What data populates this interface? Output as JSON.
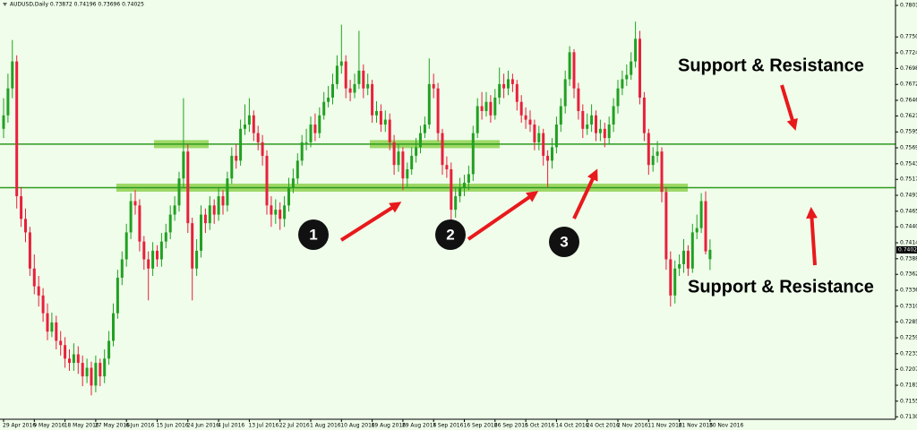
{
  "chart_data": {
    "type": "candlestick",
    "title": "AUDUSD,Daily  0.73872 0.74196 0.73696 0.74025",
    "up_color": "#22a022",
    "down_color": "#e8203c",
    "ylim": [
      0.7126,
      0.78015
    ],
    "yticks": [
      0.78015,
      {
        "value": 0.775,
        "label": "0.77500"
      },
      {
        "value": 0.7724,
        "label": "0.77240"
      },
      0.76985,
      0.76725,
      0.76465,
      {
        "value": 0.7621,
        "label": "0.76210"
      },
      {
        "value": 0.7595,
        "label": "0.75950"
      },
      {
        "value": 0.7569,
        "label": "0.75690"
      },
      {
        "value": 0.7543,
        "label": "0.75430"
      },
      0.75175,
      0.74915,
      0.74655,
      {
        "value": 0.744,
        "label": "0.74400"
      },
      {
        "value": 0.7414,
        "label": "0.74140"
      },
      {
        "value": 0.7388,
        "label": "0.73880"
      },
      0.73625,
      0.73365,
      0.73105,
      {
        "value": 0.7285,
        "label": "0.72850"
      },
      {
        "value": 0.7259,
        "label": "0.72590"
      },
      {
        "value": 0.7233,
        "label": "0.72330"
      },
      0.72075,
      0.71815,
      0.71555,
      {
        "value": 0.713,
        "label": "0.71300"
      }
    ],
    "levels": [
      0.7575,
      0.7504
    ],
    "level_color": "#2e9a1e",
    "annotations": [
      "Support & Resistance",
      "Support & Resistance"
    ],
    "markers": [
      "1",
      "2",
      "3"
    ],
    "categories": [
      "29 Apr 2016",
      null,
      null,
      null,
      null,
      null,
      null,
      "9 May 2016",
      null,
      null,
      null,
      null,
      null,
      null,
      "18 May 2016",
      null,
      null,
      null,
      null,
      null,
      null,
      "27 May 2016",
      null,
      null,
      null,
      null,
      null,
      null,
      "6 Jun 2016",
      null,
      null,
      null,
      null,
      null,
      null,
      "15 Jun 2016",
      null,
      null,
      null,
      null,
      null,
      null,
      "24 Jun 2016",
      null,
      null,
      null,
      null,
      null,
      null,
      "4 Jul 2016",
      null,
      null,
      null,
      null,
      null,
      null,
      "13 Jul 2016",
      null,
      null,
      null,
      null,
      null,
      null,
      "22 Jul 2016",
      null,
      null,
      null,
      null,
      null,
      null,
      "1 Aug 2016",
      null,
      null,
      null,
      null,
      null,
      null,
      "10 Aug 2016",
      null,
      null,
      null,
      null,
      null,
      null,
      "19 Aug 2016",
      null,
      null,
      null,
      null,
      null,
      null,
      "29 Aug 2016",
      null,
      null,
      null,
      null,
      null,
      null,
      "7 Sep 2016",
      null,
      null,
      null,
      null,
      null,
      null,
      "16 Sep 2016",
      null,
      null,
      null,
      null,
      null,
      null,
      "26 Sep 2016",
      null,
      null,
      null,
      null,
      null,
      null,
      "5 Oct 2016",
      null,
      null,
      null,
      null,
      null,
      null,
      "14 Oct 2016",
      null,
      null,
      null,
      null,
      null,
      null,
      "24 Oct 2016",
      null,
      null,
      null,
      null,
      null,
      null,
      "2 Nov 2016",
      null,
      null,
      null,
      null,
      null,
      null,
      "11 Nov 2016",
      null,
      null,
      null,
      null,
      null,
      null,
      "21 Nov 2016",
      null,
      null,
      null,
      null,
      null,
      null,
      "30 Nov 2016"
    ],
    "ohlc": [
      [
        0.76,
        0.765,
        0.7585,
        0.7622
      ],
      [
        0.7622,
        0.769,
        0.761,
        0.7666
      ],
      [
        0.7666,
        0.7745,
        0.765,
        0.771
      ],
      [
        0.771,
        0.772,
        0.747,
        0.749
      ],
      [
        0.749,
        0.7505,
        0.744,
        0.7453
      ],
      [
        0.7453,
        0.747,
        0.7415,
        0.7431
      ],
      [
        0.7431,
        0.744,
        0.736,
        0.7372
      ],
      [
        0.7372,
        0.7395,
        0.733,
        0.7343
      ],
      [
        0.7343,
        0.736,
        0.731,
        0.7328
      ],
      [
        0.7328,
        0.734,
        0.7285,
        0.7299
      ],
      [
        0.7299,
        0.7315,
        0.7255,
        0.7269
      ],
      [
        0.7269,
        0.73,
        0.726,
        0.7284
      ],
      [
        0.7284,
        0.7295,
        0.724,
        0.7254
      ],
      [
        0.7254,
        0.727,
        0.723,
        0.7247
      ],
      [
        0.7247,
        0.726,
        0.721,
        0.7225
      ],
      [
        0.7225,
        0.724,
        0.7205,
        0.7218
      ],
      [
        0.7218,
        0.725,
        0.7205,
        0.7232
      ],
      [
        0.7232,
        0.7245,
        0.72,
        0.7218
      ],
      [
        0.7218,
        0.723,
        0.718,
        0.7196
      ],
      [
        0.7196,
        0.7225,
        0.7185,
        0.721
      ],
      [
        0.721,
        0.722,
        0.7165,
        0.7181
      ],
      [
        0.7181,
        0.723,
        0.717,
        0.7218
      ],
      [
        0.7218,
        0.7225,
        0.718,
        0.7196
      ],
      [
        0.7196,
        0.724,
        0.7185,
        0.7225
      ],
      [
        0.7225,
        0.727,
        0.7215,
        0.7254
      ],
      [
        0.7254,
        0.7315,
        0.7245,
        0.7299
      ],
      [
        0.7299,
        0.737,
        0.729,
        0.7357
      ],
      [
        0.7357,
        0.74,
        0.7345,
        0.7387
      ],
      [
        0.7387,
        0.7445,
        0.7375,
        0.7431
      ],
      [
        0.7431,
        0.7495,
        0.742,
        0.7482
      ],
      [
        0.7482,
        0.75,
        0.746,
        0.7475
      ],
      [
        0.7475,
        0.7485,
        0.74,
        0.7416
      ],
      [
        0.7416,
        0.7425,
        0.737,
        0.7387
      ],
      [
        0.7387,
        0.74,
        0.732,
        0.7372
      ],
      [
        0.7372,
        0.7415,
        0.736,
        0.7401
      ],
      [
        0.7401,
        0.741,
        0.7375,
        0.7387
      ],
      [
        0.7387,
        0.743,
        0.7375,
        0.7416
      ],
      [
        0.7416,
        0.7445,
        0.7405,
        0.7431
      ],
      [
        0.7431,
        0.7475,
        0.742,
        0.746
      ],
      [
        0.746,
        0.749,
        0.745,
        0.7475
      ],
      [
        0.7475,
        0.753,
        0.7465,
        0.7519
      ],
      [
        0.7519,
        0.765,
        0.7505,
        0.7563
      ],
      [
        0.7563,
        0.7575,
        0.743,
        0.7446
      ],
      [
        0.7446,
        0.7455,
        0.732,
        0.7372
      ],
      [
        0.7372,
        0.742,
        0.736,
        0.7401
      ],
      [
        0.7401,
        0.7475,
        0.739,
        0.746
      ],
      [
        0.746,
        0.747,
        0.743,
        0.7446
      ],
      [
        0.7446,
        0.749,
        0.7435,
        0.7475
      ],
      [
        0.7475,
        0.7485,
        0.7445,
        0.746
      ],
      [
        0.746,
        0.7505,
        0.745,
        0.749
      ],
      [
        0.749,
        0.75,
        0.746,
        0.7475
      ],
      [
        0.7475,
        0.753,
        0.7465,
        0.7519
      ],
      [
        0.7519,
        0.757,
        0.751,
        0.7556
      ],
      [
        0.7556,
        0.7575,
        0.7535,
        0.7548
      ],
      [
        0.7548,
        0.7615,
        0.754,
        0.76
      ],
      [
        0.76,
        0.764,
        0.759,
        0.7607
      ],
      [
        0.7607,
        0.765,
        0.7595,
        0.7622
      ],
      [
        0.7622,
        0.763,
        0.758,
        0.7593
      ],
      [
        0.7593,
        0.7605,
        0.7565,
        0.7578
      ],
      [
        0.7578,
        0.759,
        0.754,
        0.7556
      ],
      [
        0.7556,
        0.7565,
        0.746,
        0.7475
      ],
      [
        0.7475,
        0.749,
        0.744,
        0.746
      ],
      [
        0.746,
        0.7485,
        0.7445,
        0.7468
      ],
      [
        0.7468,
        0.748,
        0.7435,
        0.7453
      ],
      [
        0.7453,
        0.749,
        0.744,
        0.7475
      ],
      [
        0.7475,
        0.752,
        0.7465,
        0.7504
      ],
      [
        0.7504,
        0.7535,
        0.7495,
        0.7519
      ],
      [
        0.7519,
        0.756,
        0.751,
        0.7548
      ],
      [
        0.7548,
        0.759,
        0.754,
        0.7578
      ],
      [
        0.7578,
        0.76,
        0.7565,
        0.7578
      ],
      [
        0.7578,
        0.762,
        0.757,
        0.7607
      ],
      [
        0.7607,
        0.7625,
        0.758,
        0.7593
      ],
      [
        0.7593,
        0.7635,
        0.7585,
        0.7622
      ],
      [
        0.7622,
        0.766,
        0.7615,
        0.7644
      ],
      [
        0.7644,
        0.767,
        0.7635,
        0.7651
      ],
      [
        0.7651,
        0.769,
        0.764,
        0.7673
      ],
      [
        0.7673,
        0.772,
        0.7665,
        0.7703
      ],
      [
        0.7703,
        0.777,
        0.769,
        0.771
      ],
      [
        0.771,
        0.772,
        0.765,
        0.7666
      ],
      [
        0.7666,
        0.768,
        0.7645,
        0.7659
      ],
      [
        0.7659,
        0.769,
        0.765,
        0.7673
      ],
      [
        0.7673,
        0.776,
        0.7665,
        0.7695
      ],
      [
        0.7695,
        0.7705,
        0.765,
        0.7666
      ],
      [
        0.7666,
        0.769,
        0.7655,
        0.7673
      ],
      [
        0.7673,
        0.768,
        0.761,
        0.7622
      ],
      [
        0.7622,
        0.7645,
        0.761,
        0.7629
      ],
      [
        0.7629,
        0.764,
        0.7595,
        0.7607
      ],
      [
        0.7607,
        0.763,
        0.7595,
        0.7615
      ],
      [
        0.7615,
        0.7625,
        0.7565,
        0.7578
      ],
      [
        0.7578,
        0.759,
        0.7525,
        0.7541
      ],
      [
        0.7541,
        0.7575,
        0.753,
        0.7563
      ],
      [
        0.7563,
        0.757,
        0.75,
        0.7519
      ],
      [
        0.7519,
        0.7545,
        0.7505,
        0.7534
      ],
      [
        0.7534,
        0.757,
        0.7525,
        0.7556
      ],
      [
        0.7556,
        0.7585,
        0.7545,
        0.757
      ],
      [
        0.757,
        0.7605,
        0.756,
        0.7593
      ],
      [
        0.7593,
        0.762,
        0.7585,
        0.7607
      ],
      [
        0.7607,
        0.7715,
        0.76,
        0.7673
      ],
      [
        0.7673,
        0.769,
        0.765,
        0.7666
      ],
      [
        0.7666,
        0.7675,
        0.758,
        0.7593
      ],
      [
        0.7593,
        0.76,
        0.7525,
        0.7541
      ],
      [
        0.7541,
        0.7555,
        0.752,
        0.7534
      ],
      [
        0.7534,
        0.7545,
        0.745,
        0.7468
      ],
      [
        0.7468,
        0.7505,
        0.7455,
        0.749
      ],
      [
        0.749,
        0.752,
        0.748,
        0.7504
      ],
      [
        0.7504,
        0.7525,
        0.749,
        0.7512
      ],
      [
        0.7512,
        0.754,
        0.75,
        0.7526
      ],
      [
        0.7526,
        0.7605,
        0.7515,
        0.7593
      ],
      [
        0.7593,
        0.765,
        0.7585,
        0.7637
      ],
      [
        0.7637,
        0.766,
        0.7615,
        0.7629
      ],
      [
        0.7629,
        0.766,
        0.762,
        0.7644
      ],
      [
        0.7644,
        0.7655,
        0.761,
        0.7622
      ],
      [
        0.7622,
        0.7665,
        0.7615,
        0.7651
      ],
      [
        0.7651,
        0.77,
        0.764,
        0.7673
      ],
      [
        0.7673,
        0.769,
        0.765,
        0.7666
      ],
      [
        0.7666,
        0.7695,
        0.7655,
        0.7681
      ],
      [
        0.7681,
        0.769,
        0.766,
        0.7673
      ],
      [
        0.7673,
        0.768,
        0.763,
        0.7644
      ],
      [
        0.7644,
        0.7655,
        0.761,
        0.7622
      ],
      [
        0.7622,
        0.7635,
        0.76,
        0.7615
      ],
      [
        0.7615,
        0.763,
        0.7595,
        0.7607
      ],
      [
        0.7607,
        0.7615,
        0.7565,
        0.7578
      ],
      [
        0.7578,
        0.7605,
        0.7565,
        0.7593
      ],
      [
        0.7593,
        0.76,
        0.754,
        0.7556
      ],
      [
        0.7556,
        0.7565,
        0.7505,
        0.7548
      ],
      [
        0.7548,
        0.7585,
        0.7535,
        0.757
      ],
      [
        0.757,
        0.762,
        0.756,
        0.7607
      ],
      [
        0.7607,
        0.765,
        0.7595,
        0.7637
      ],
      [
        0.7637,
        0.7695,
        0.7625,
        0.7681
      ],
      [
        0.7681,
        0.7735,
        0.767,
        0.7725
      ],
      [
        0.7725,
        0.773,
        0.765,
        0.7666
      ],
      [
        0.7666,
        0.7675,
        0.7615,
        0.7629
      ],
      [
        0.7629,
        0.764,
        0.7585,
        0.76
      ],
      [
        0.76,
        0.7625,
        0.759,
        0.7607
      ],
      [
        0.7607,
        0.764,
        0.7595,
        0.7622
      ],
      [
        0.7622,
        0.763,
        0.758,
        0.7593
      ],
      [
        0.7593,
        0.7615,
        0.758,
        0.76
      ],
      [
        0.76,
        0.761,
        0.757,
        0.7585
      ],
      [
        0.7585,
        0.762,
        0.7575,
        0.7607
      ],
      [
        0.7607,
        0.765,
        0.7595,
        0.7637
      ],
      [
        0.7637,
        0.768,
        0.7625,
        0.7666
      ],
      [
        0.7666,
        0.7695,
        0.7655,
        0.7681
      ],
      [
        0.7681,
        0.7705,
        0.767,
        0.7688
      ],
      [
        0.7688,
        0.7725,
        0.768,
        0.771
      ],
      [
        0.771,
        0.7775,
        0.77,
        0.7747
      ],
      [
        0.7747,
        0.776,
        0.764,
        0.7651
      ],
      [
        0.7651,
        0.766,
        0.758,
        0.7593
      ],
      [
        0.7593,
        0.76,
        0.7525,
        0.7541
      ],
      [
        0.7541,
        0.757,
        0.753,
        0.7556
      ],
      [
        0.7556,
        0.758,
        0.7545,
        0.7563
      ],
      [
        0.7563,
        0.757,
        0.748,
        0.7497
      ],
      [
        0.7497,
        0.7505,
        0.737,
        0.7387
      ],
      [
        0.7387,
        0.74,
        0.731,
        0.7328
      ],
      [
        0.7328,
        0.7385,
        0.7315,
        0.7372
      ],
      [
        0.7372,
        0.7395,
        0.736,
        0.7379
      ],
      [
        0.7379,
        0.742,
        0.7365,
        0.7401
      ],
      [
        0.7401,
        0.741,
        0.736,
        0.7372
      ],
      [
        0.7372,
        0.7445,
        0.7365,
        0.7431
      ],
      [
        0.7431,
        0.746,
        0.742,
        0.7438
      ],
      [
        0.7438,
        0.7495,
        0.743,
        0.7482
      ],
      [
        0.7482,
        0.7498,
        0.7395,
        0.74
      ],
      [
        0.73872,
        0.74196,
        0.73696,
        0.74025
      ]
    ]
  }
}
